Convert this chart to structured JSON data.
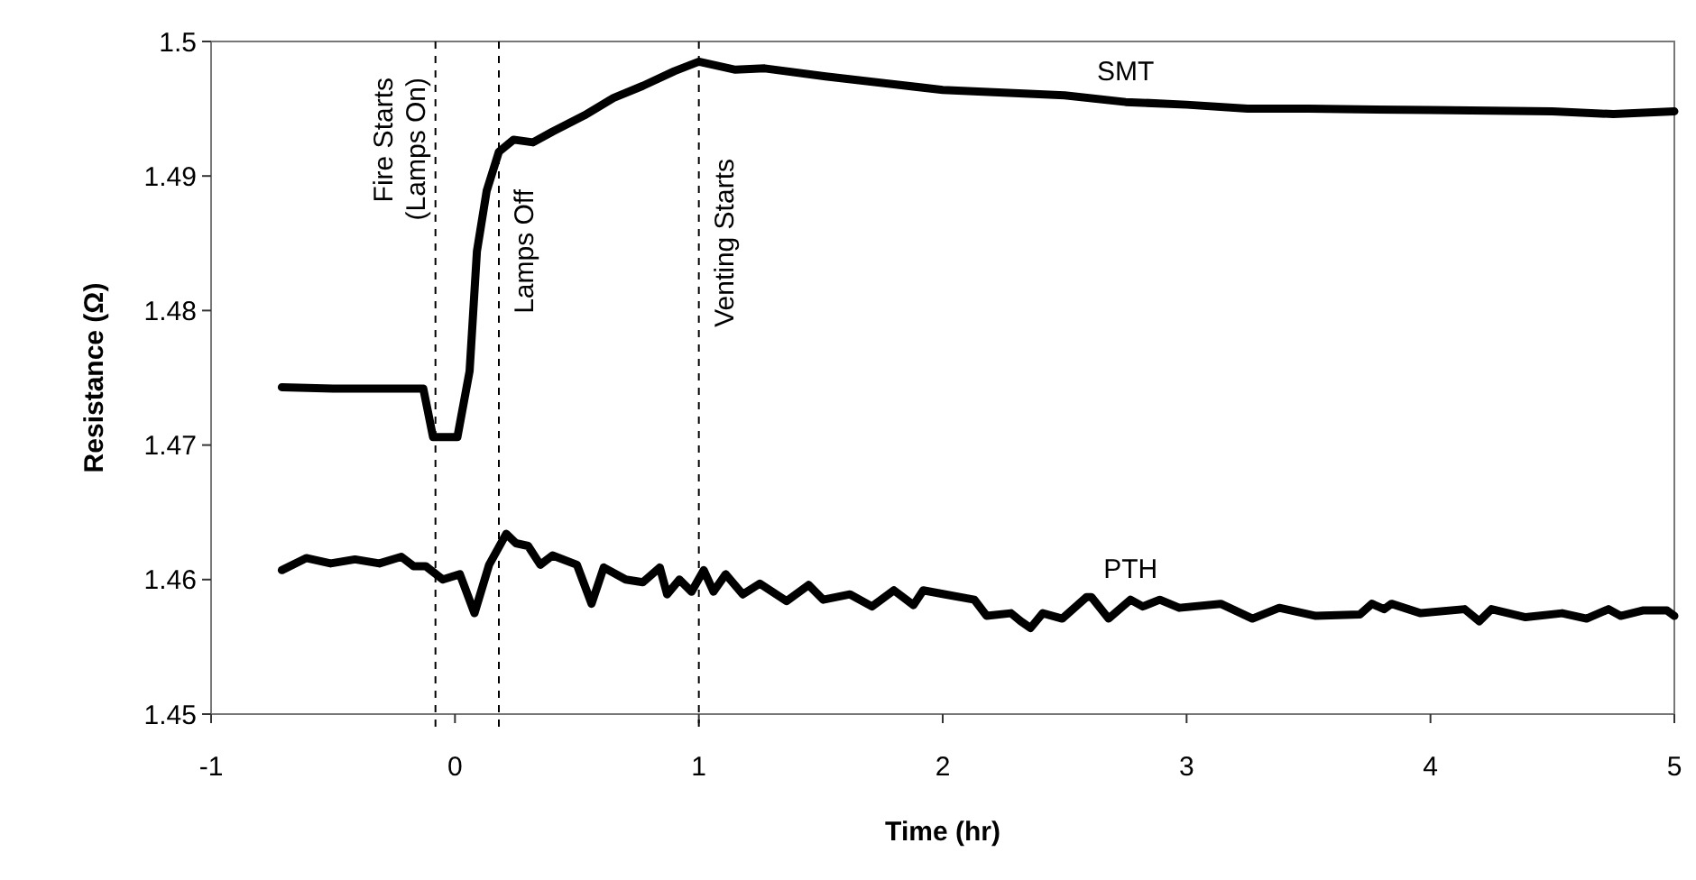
{
  "chart_data": {
    "type": "line",
    "xlabel": "Time (hr)",
    "ylabel": "Resistance (Ω)",
    "xlim": [
      -1,
      5
    ],
    "xticks": [
      -1,
      0,
      1,
      2,
      3,
      4,
      5
    ],
    "ylim": [
      1.45,
      1.5
    ],
    "yticks": [
      1.45,
      1.46,
      1.47,
      1.48,
      1.49,
      1.5
    ],
    "grid": false,
    "marker": "none",
    "line_style": "solid",
    "ref_lines": [
      {
        "axis": "x",
        "value": -0.08,
        "label": "Fire Starts\n(Lamps On)",
        "line_style": "dashed",
        "color": "#000000"
      },
      {
        "axis": "x",
        "value": 0.18,
        "label": "Lamps Off",
        "line_style": "dashed",
        "color": "#000000"
      },
      {
        "axis": "x",
        "value": 1,
        "label": "Venting Starts",
        "line_style": "dashed",
        "color": "#000000"
      }
    ],
    "series": [
      {
        "name": "SMT",
        "color": "#000000",
        "x": [
          -0.71,
          -0.5,
          -0.3,
          -0.13,
          -0.09,
          0.01,
          0.06,
          0.09,
          0.13,
          0.18,
          0.24,
          0.32,
          0.4,
          0.53,
          0.65,
          0.77,
          0.9,
          1.0,
          1.15,
          1.27,
          1.52,
          1.76,
          2.0,
          2.5,
          2.75,
          3.0,
          3.25,
          3.5,
          4.0,
          4.5,
          4.75,
          5.0
        ],
        "values": [
          1.4743,
          1.4742,
          1.4742,
          1.4742,
          1.4706,
          1.4706,
          1.4755,
          1.4844,
          1.4889,
          1.4918,
          1.4927,
          1.4925,
          1.4933,
          1.4945,
          1.4958,
          1.4967,
          1.4978,
          1.4985,
          1.4979,
          1.498,
          1.4974,
          1.4969,
          1.4964,
          1.496,
          1.4955,
          1.4953,
          1.495,
          1.495,
          1.4949,
          1.4948,
          1.4946,
          1.4948
        ]
      },
      {
        "name": "PTH",
        "color": "#000000",
        "x": [
          -0.71,
          -0.61,
          -0.51,
          -0.41,
          -0.31,
          -0.22,
          -0.17,
          -0.12,
          -0.05,
          0.02,
          0.08,
          0.14,
          0.21,
          0.25,
          0.3,
          0.35,
          0.4,
          0.5,
          0.56,
          0.61,
          0.7,
          0.77,
          0.84,
          0.87,
          0.92,
          0.97,
          1.02,
          1.06,
          1.11,
          1.18,
          1.25,
          1.36,
          1.45,
          1.51,
          1.62,
          1.71,
          1.8,
          1.88,
          1.92,
          2.01,
          2.13,
          2.18,
          2.28,
          2.32,
          2.36,
          2.41,
          2.49,
          2.59,
          2.61,
          2.68,
          2.77,
          2.82,
          2.89,
          2.97,
          3.14,
          3.27,
          3.38,
          3.53,
          3.71,
          3.76,
          3.81,
          3.84,
          3.96,
          4.14,
          4.2,
          4.25,
          4.39,
          4.54,
          4.64,
          4.73,
          4.78,
          4.87,
          4.97,
          5.0
        ],
        "values": [
          1.4607,
          1.4616,
          1.4612,
          1.4615,
          1.4612,
          1.4617,
          1.461,
          1.461,
          1.46,
          1.4604,
          1.4575,
          1.4611,
          1.4634,
          1.4627,
          1.4625,
          1.4611,
          1.4618,
          1.4611,
          1.4582,
          1.4609,
          1.46,
          1.4598,
          1.4609,
          1.4589,
          1.46,
          1.4591,
          1.4607,
          1.4591,
          1.4604,
          1.4589,
          1.4597,
          1.4584,
          1.4596,
          1.4585,
          1.4589,
          1.458,
          1.4592,
          1.4581,
          1.4592,
          1.4589,
          1.4585,
          1.4573,
          1.4575,
          1.4569,
          1.4564,
          1.4575,
          1.4571,
          1.4587,
          1.4587,
          1.4571,
          1.4585,
          1.458,
          1.4585,
          1.4579,
          1.4582,
          1.4571,
          1.4579,
          1.4573,
          1.4574,
          1.4582,
          1.4578,
          1.4582,
          1.4575,
          1.4578,
          1.4569,
          1.4578,
          1.4572,
          1.4575,
          1.4571,
          1.4578,
          1.4573,
          1.4577,
          1.4577,
          1.4573
        ]
      }
    ]
  }
}
